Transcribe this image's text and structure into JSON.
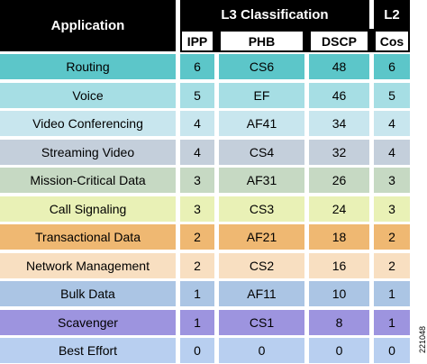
{
  "table": {
    "headers": {
      "application": "Application",
      "l3": "L3 Classification",
      "l2": "L2",
      "columns": [
        "IPP",
        "PHB",
        "DSCP",
        "Cos"
      ]
    },
    "rows": [
      {
        "cells": [
          "Routing",
          "6",
          "CS6",
          "48",
          "6"
        ],
        "color": "#5cc6c9"
      },
      {
        "cells": [
          "Voice",
          "5",
          "EF",
          "46",
          "5"
        ],
        "color": "#a6dee4"
      },
      {
        "cells": [
          "Video Conferencing",
          "4",
          "AF41",
          "34",
          "4"
        ],
        "color": "#c8e6ee"
      },
      {
        "cells": [
          "Streaming Video",
          "4",
          "CS4",
          "32",
          "4"
        ],
        "color": "#c4cfdb"
      },
      {
        "cells": [
          "Mission-Critical Data",
          "3",
          "AF31",
          "26",
          "3"
        ],
        "color": "#c6d9c3"
      },
      {
        "cells": [
          "Call Signaling",
          "3",
          "CS3",
          "24",
          "3"
        ],
        "color": "#e9f1b6"
      },
      {
        "cells": [
          "Transactional Data",
          "2",
          "AF21",
          "18",
          "2"
        ],
        "color": "#efb872"
      },
      {
        "cells": [
          "Network Management",
          "2",
          "CS2",
          "16",
          "2"
        ],
        "color": "#f8dfc1"
      },
      {
        "cells": [
          "Bulk Data",
          "1",
          "AF11",
          "10",
          "1"
        ],
        "color": "#abc5e4"
      },
      {
        "cells": [
          "Scavenger",
          "1",
          "CS1",
          "8",
          "1"
        ],
        "color": "#9d94df"
      },
      {
        "cells": [
          "Best Effort",
          "0",
          "0",
          "0",
          "0"
        ],
        "color": "#b8cff0"
      }
    ],
    "figure_id": "221048"
  }
}
